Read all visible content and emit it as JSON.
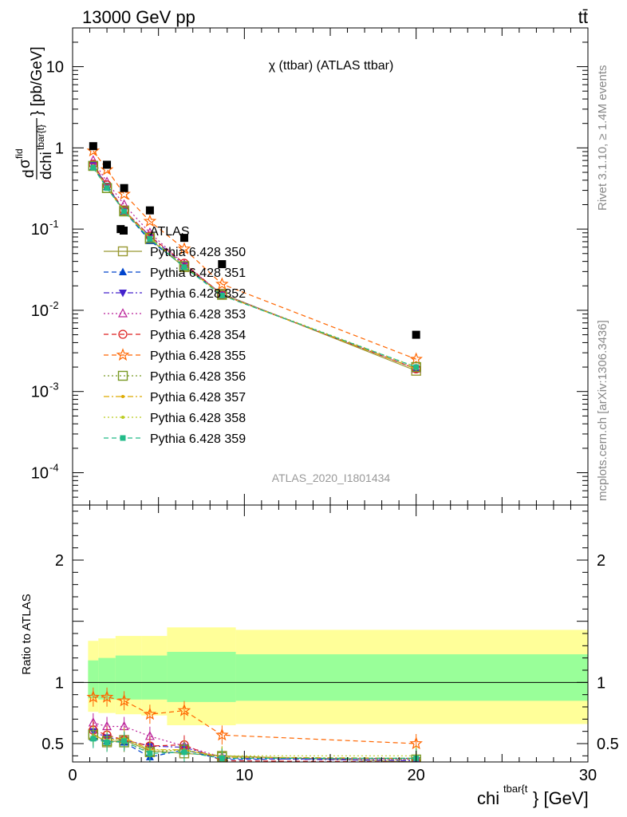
{
  "header": {
    "left": "13000 GeV pp",
    "right": "tt̄"
  },
  "side": {
    "rivet": "Rivet 3.1.10, ≥ 1.4M events",
    "mcplots": "mcplots.cern.ch [arXiv:1306.3436]"
  },
  "chart_data": [
    {
      "type": "line",
      "title": "χ (ttbar) (ATLAS ttbar)",
      "watermark": "ATLAS_2020_I1801434",
      "ylabel": "dσ^fid / dchi^tbar{t} [pb/GeV]",
      "xlim": [
        0,
        30
      ],
      "ylim": [
        4e-05,
        30
      ],
      "yscale": "log",
      "xticks": [
        "0",
        "10",
        "20",
        "30"
      ],
      "yticks": [
        "10^-4",
        "10^-3",
        "10^-2",
        "10^-1",
        "1",
        "10"
      ],
      "legend_position": "middle-left",
      "data": {
        "name": "ATLAS",
        "x": [
          1.2,
          2.0,
          3.0,
          4.5,
          6.5,
          8.7,
          20.0
        ],
        "y": [
          1.05,
          0.62,
          0.32,
          0.17,
          0.078,
          0.037,
          0.005
        ],
        "extra_point": {
          "x": 2.8,
          "y": 0.1
        }
      },
      "series": [
        {
          "name": "Pythia 6.428 350",
          "color": "#999933",
          "marker": "open-square",
          "dash": "solid",
          "x": [
            1.2,
            2.0,
            3.0,
            4.5,
            6.5,
            8.7,
            20.0
          ],
          "y": [
            0.6,
            0.32,
            0.17,
            0.075,
            0.034,
            0.016,
            0.0018
          ]
        },
        {
          "name": "Pythia 6.428 351",
          "color": "#0044cc",
          "marker": "triangle-up",
          "dash": "dashed",
          "x": [
            1.2,
            2.0,
            3.0,
            4.5,
            6.5,
            8.7,
            20.0
          ],
          "y": [
            0.58,
            0.33,
            0.165,
            0.072,
            0.035,
            0.0155,
            0.0019
          ]
        },
        {
          "name": "Pythia 6.428 352",
          "color": "#4422cc",
          "marker": "triangle-down",
          "dash": "dashdot",
          "x": [
            1.2,
            2.0,
            3.0,
            4.5,
            6.5,
            8.7,
            20.0
          ],
          "y": [
            0.62,
            0.34,
            0.17,
            0.082,
            0.036,
            0.0158,
            0.0019
          ]
        },
        {
          "name": "Pythia 6.428 353",
          "color": "#bb2299",
          "marker": "open-triangle-up",
          "dash": "dotted",
          "x": [
            1.2,
            2.0,
            3.0,
            4.5,
            6.5,
            8.7,
            20.0
          ],
          "y": [
            0.7,
            0.38,
            0.2,
            0.09,
            0.037,
            0.0158,
            0.0019
          ]
        },
        {
          "name": "Pythia 6.428 354",
          "color": "#dd2222",
          "marker": "open-circle",
          "dash": "dashed",
          "x": [
            1.2,
            2.0,
            3.0,
            4.5,
            6.5,
            8.7,
            20.0
          ],
          "y": [
            0.63,
            0.35,
            0.17,
            0.082,
            0.038,
            0.0155,
            0.0019
          ]
        },
        {
          "name": "Pythia 6.428 355",
          "color": "#ff6600",
          "marker": "open-star",
          "dash": "dashed",
          "x": [
            1.2,
            2.0,
            3.0,
            4.5,
            6.5,
            8.7,
            20.0
          ],
          "y": [
            0.92,
            0.54,
            0.27,
            0.125,
            0.057,
            0.021,
            0.0025
          ]
        },
        {
          "name": "Pythia 6.428 356",
          "color": "#779922",
          "marker": "open-square",
          "dash": "dotted",
          "x": [
            1.2,
            2.0,
            3.0,
            4.5,
            6.5,
            8.7,
            20.0
          ],
          "y": [
            0.6,
            0.32,
            0.165,
            0.078,
            0.035,
            0.0155,
            0.002
          ]
        },
        {
          "name": "Pythia 6.428 357",
          "color": "#ddaa00",
          "marker": "small-dot",
          "dash": "dashdot",
          "x": [
            1.2,
            2.0,
            3.0,
            4.5,
            6.5,
            8.7,
            20.0
          ],
          "y": [
            0.6,
            0.32,
            0.17,
            0.078,
            0.035,
            0.0155,
            0.0019
          ]
        },
        {
          "name": "Pythia 6.428 358",
          "color": "#bbcc22",
          "marker": "small-dot",
          "dash": "dotted",
          "x": [
            1.2,
            2.0,
            3.0,
            4.5,
            6.5,
            8.7,
            20.0
          ],
          "y": [
            0.6,
            0.32,
            0.17,
            0.077,
            0.035,
            0.0156,
            0.002
          ]
        },
        {
          "name": "Pythia 6.428 359",
          "color": "#22bb88",
          "marker": "filled-square",
          "dash": "dashed",
          "x": [
            1.2,
            2.0,
            3.0,
            4.5,
            6.5,
            8.7,
            20.0
          ],
          "y": [
            0.57,
            0.32,
            0.165,
            0.076,
            0.034,
            0.0152,
            0.002
          ]
        }
      ]
    },
    {
      "type": "line",
      "ylabel": "Ratio to ATLAS",
      "xlabel": "chi^tbar{t} [GeV]",
      "xlim": [
        0,
        30
      ],
      "ylim": [
        0.35,
        2.45
      ],
      "xticks": [
        "0",
        "10",
        "20",
        "30"
      ],
      "yticks": [
        "0.5",
        "1",
        "2"
      ],
      "reference_line": 1,
      "bands": {
        "edges": [
          0.9,
          1.5,
          2.5,
          4.0,
          5.5,
          9.5,
          30.0
        ],
        "yellow_lo": [
          0.76,
          0.75,
          0.74,
          0.73,
          0.65,
          0.66
        ],
        "yellow_hi": [
          1.34,
          1.36,
          1.38,
          1.38,
          1.45,
          1.43
        ],
        "green_lo": [
          0.87,
          0.86,
          0.86,
          0.86,
          0.84,
          0.85
        ],
        "green_hi": [
          1.18,
          1.2,
          1.22,
          1.22,
          1.25,
          1.23
        ]
      },
      "series": [
        {
          "name": "Pythia 6.428 350",
          "x": [
            1.2,
            2.0,
            3.0,
            4.5,
            6.5,
            8.7,
            20.0
          ],
          "y": [
            0.58,
            0.51,
            0.53,
            0.44,
            0.42,
            0.4,
            0.35
          ]
        },
        {
          "name": "Pythia 6.428 351",
          "x": [
            1.2,
            2.0,
            3.0,
            4.5,
            6.5,
            8.7,
            20.0
          ],
          "y": [
            0.55,
            0.52,
            0.51,
            0.39,
            0.45,
            0.37,
            0.38
          ]
        },
        {
          "name": "Pythia 6.428 352",
          "x": [
            1.2,
            2.0,
            3.0,
            4.5,
            6.5,
            8.7,
            20.0
          ],
          "y": [
            0.6,
            0.55,
            0.53,
            0.48,
            0.47,
            0.38,
            0.36
          ]
        },
        {
          "name": "Pythia 6.428 353",
          "x": [
            1.2,
            2.0,
            3.0,
            4.5,
            6.5,
            8.7,
            20.0
          ],
          "y": [
            0.67,
            0.64,
            0.64,
            0.56,
            0.48,
            0.39,
            0.37
          ]
        },
        {
          "name": "Pythia 6.428 354",
          "x": [
            1.2,
            2.0,
            3.0,
            4.5,
            6.5,
            8.7,
            20.0
          ],
          "y": [
            0.61,
            0.57,
            0.53,
            0.48,
            0.49,
            0.36,
            0.35
          ]
        },
        {
          "name": "Pythia 6.428 355",
          "x": [
            1.2,
            2.0,
            3.0,
            4.5,
            6.5,
            8.7,
            20.0
          ],
          "y": [
            0.88,
            0.88,
            0.85,
            0.74,
            0.77,
            0.57,
            0.5
          ]
        },
        {
          "name": "Pythia 6.428 356",
          "x": [
            1.2,
            2.0,
            3.0,
            4.5,
            6.5,
            8.7,
            20.0
          ],
          "y": [
            0.57,
            0.52,
            0.51,
            0.43,
            0.45,
            0.39,
            0.37
          ]
        },
        {
          "name": "Pythia 6.428 357",
          "x": [
            1.2,
            2.0,
            3.0,
            4.5,
            6.5,
            8.7,
            20.0
          ],
          "y": [
            0.57,
            0.52,
            0.55,
            0.45,
            0.45,
            0.39,
            0.38
          ]
        },
        {
          "name": "Pythia 6.428 358",
          "x": [
            1.2,
            2.0,
            3.0,
            4.5,
            6.5,
            8.7,
            20.0
          ],
          "y": [
            0.56,
            0.53,
            0.54,
            0.45,
            0.44,
            0.4,
            0.4
          ]
        },
        {
          "name": "Pythia 6.428 359",
          "x": [
            1.2,
            2.0,
            3.0,
            4.5,
            6.5,
            8.7,
            20.0
          ],
          "y": [
            0.54,
            0.51,
            0.52,
            0.42,
            0.43,
            0.38,
            0.38
          ]
        }
      ]
    }
  ]
}
